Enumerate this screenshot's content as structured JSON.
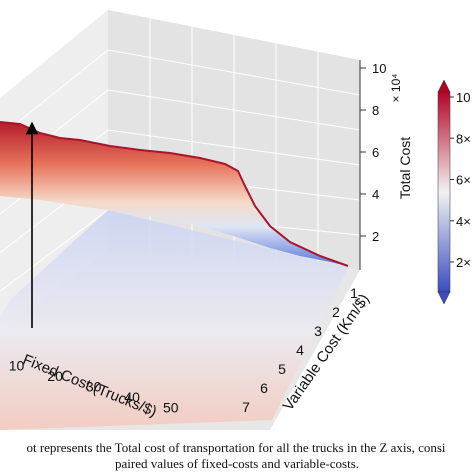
{
  "chart_data": {
    "type": "surface3d",
    "x_axis": {
      "label": "Fixed Cost (Trucks/$)",
      "ticks": [
        10,
        20,
        30,
        40,
        50
      ]
    },
    "y_axis": {
      "label": "Variable Cost (Km/$)",
      "ticks": [
        1,
        2,
        3,
        4,
        5,
        6,
        7
      ]
    },
    "z_axis": {
      "label": "Total Cost",
      "ticks": [
        2,
        4,
        6,
        8,
        10
      ],
      "multiplier": "× 10⁴"
    },
    "zlim": [
      0,
      100000
    ],
    "colorbar": {
      "ticks": [
        "2×",
        "4×",
        "6×",
        "8×",
        "10"
      ],
      "colormap": "coolwarm"
    },
    "surface_samples": [
      {
        "fixed_cost": 0,
        "variable_cost": 7,
        "total_cost": 90000
      },
      {
        "fixed_cost": 0,
        "variable_cost": 1,
        "total_cost": 57000
      },
      {
        "fixed_cost": 55,
        "variable_cost": 1,
        "total_cost": 12000
      },
      {
        "fixed_cost": 55,
        "variable_cost": 7,
        "total_cost": 1000
      }
    ],
    "colors": {
      "high": "#b2182b",
      "mid": "#f7f7f7",
      "low": "#3b4cc0"
    }
  },
  "caption": {
    "line1": "ot represents the Total cost of transportation for all the trucks in the Z axis, consi",
    "line2": "paired values of fixed-costs and variable-costs."
  }
}
